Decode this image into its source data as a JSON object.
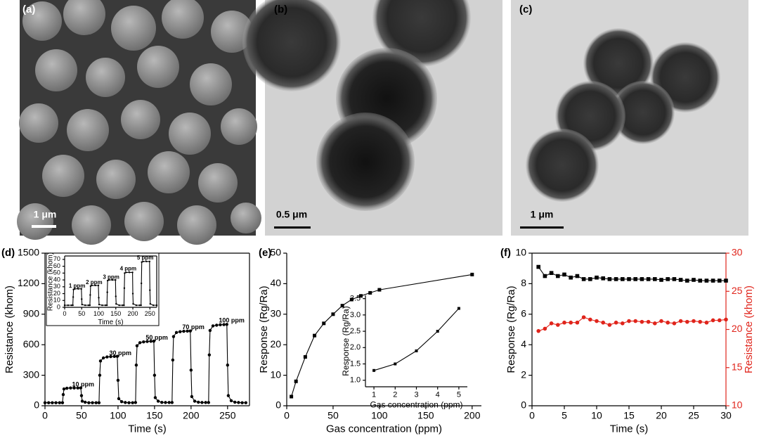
{
  "images": [
    {
      "label": "(a)",
      "scale_bar": "1 μm"
    },
    {
      "label": "(b)",
      "scale_bar": "0.5 μm"
    },
    {
      "label": "(c)",
      "scale_bar": "1 μm"
    }
  ],
  "chart_data": [
    {
      "type": "line",
      "panel_label": "(d)",
      "x_label": "Time (s)",
      "y_label": "Resistance (khom)",
      "x": [
        0,
        5,
        10,
        15,
        20,
        24,
        25,
        26,
        30,
        35,
        40,
        45,
        49,
        50,
        51,
        55,
        60,
        65,
        70,
        74,
        75,
        76,
        80,
        85,
        90,
        95,
        99,
        100,
        101,
        105,
        110,
        115,
        120,
        124,
        125,
        126,
        130,
        135,
        140,
        145,
        149,
        150,
        151,
        155,
        160,
        165,
        170,
        174,
        175,
        176,
        180,
        185,
        190,
        195,
        199,
        200,
        201,
        205,
        210,
        215,
        220,
        224,
        225,
        226,
        230,
        235,
        240,
        245,
        249,
        250,
        251,
        255,
        260,
        265,
        270,
        275
      ],
      "series": [
        {
          "color": "#000000",
          "marker": "circle",
          "values": [
            30,
            30,
            30,
            30,
            30,
            30,
            110,
            165,
            172,
            175,
            175,
            175,
            176,
            100,
            45,
            35,
            30,
            30,
            30,
            30,
            300,
            440,
            470,
            480,
            483,
            485,
            486,
            250,
            70,
            40,
            32,
            30,
            30,
            32,
            400,
            590,
            620,
            628,
            632,
            634,
            635,
            300,
            80,
            45,
            33,
            32,
            32,
            32,
            450,
            680,
            720,
            728,
            732,
            734,
            735,
            350,
            90,
            45,
            35,
            32,
            32,
            32,
            500,
            740,
            785,
            792,
            796,
            798,
            800,
            400,
            100,
            50,
            35,
            32,
            30,
            30
          ]
        }
      ],
      "annotations": [
        "10 ppm",
        "30 ppm",
        "50 ppm",
        "70 ppm",
        "100 ppm"
      ],
      "xlim": [
        0,
        280
      ],
      "xticks": [
        0,
        50,
        100,
        150,
        200,
        250
      ],
      "ylim": [
        0,
        1500
      ],
      "yticks": [
        0,
        300,
        600,
        900,
        1200,
        1500
      ]
    },
    {
      "type": "line",
      "x_label": "Time (s)",
      "y_label": "Resistance (khom)",
      "x": [
        0,
        10,
        20,
        24,
        25,
        26,
        30,
        40,
        49,
        50,
        51,
        60,
        70,
        74,
        75,
        76,
        80,
        90,
        99,
        100,
        101,
        110,
        120,
        124,
        125,
        126,
        130,
        140,
        149,
        150,
        151,
        160,
        170,
        174,
        175,
        176,
        180,
        190,
        199,
        200,
        201,
        210,
        220,
        224,
        225,
        226,
        230,
        240,
        249,
        250,
        251,
        260,
        270
      ],
      "series": [
        {
          "color": "#000000",
          "marker": "circle",
          "values": [
            3,
            3,
            3,
            3,
            15,
            26,
            27,
            27,
            27,
            12,
            4,
            3,
            3,
            3,
            18,
            31,
            32,
            32,
            32,
            14,
            4,
            3,
            3,
            3,
            22,
            39,
            40,
            40,
            40,
            16,
            5,
            3,
            3,
            3,
            28,
            50,
            51,
            51,
            51,
            20,
            5,
            3,
            3,
            3,
            35,
            66,
            67,
            67,
            67,
            25,
            5,
            3,
            3
          ]
        }
      ],
      "annotations": [
        "1 ppm",
        "2 ppm",
        "3 ppm",
        "4 ppm",
        "5 ppm"
      ],
      "xlim": [
        0,
        270
      ],
      "xticks": [
        0,
        50,
        100,
        150,
        200,
        250
      ],
      "ylim": [
        0,
        75
      ],
      "yticks": [
        0,
        10,
        20,
        30,
        40,
        50,
        60,
        70
      ]
    },
    {
      "type": "line",
      "panel_label": "(e)",
      "x_label": "Gas concentration (ppm)",
      "y_label": "Response (Rg/Ra)",
      "x": [
        5,
        10,
        20,
        30,
        40,
        50,
        60,
        70,
        80,
        90,
        100,
        200
      ],
      "series": [
        {
          "color": "#000000",
          "marker": "square",
          "values": [
            3,
            8,
            16,
            23,
            27,
            30,
            32.8,
            34.8,
            36,
            37,
            38,
            43
          ]
        }
      ],
      "xlim": [
        0,
        210
      ],
      "xticks": [
        0,
        50,
        100,
        150,
        200
      ],
      "ylim": [
        0,
        50
      ],
      "yticks": [
        0,
        10,
        20,
        30,
        40,
        50
      ]
    },
    {
      "type": "line",
      "x_label": "Gas concentration (ppm)",
      "y_label": "Response (Rg/Ra)",
      "x": [
        1,
        2,
        3,
        4,
        5
      ],
      "series": [
        {
          "color": "#000000",
          "marker": "square",
          "values": [
            1.3,
            1.5,
            1.9,
            2.5,
            3.2
          ]
        }
      ],
      "xlim": [
        0.6,
        5.4
      ],
      "xticks": [
        1,
        2,
        3,
        4,
        5
      ],
      "ylim": [
        0.8,
        3.6
      ],
      "yticks": [
        {
          "value": 1,
          "label": "1.0"
        },
        1.5,
        {
          "value": 2,
          "label": "2.0"
        },
        2.5,
        {
          "value": 3,
          "label": "3.0"
        },
        3.5
      ]
    },
    {
      "type": "line",
      "panel_label": "(f)",
      "x_label": "Time (s)",
      "y_label": "Response (Rg/Ra)",
      "y2_label": "Resistance (khom)",
      "y2_color": "#e0241b",
      "x": [
        1,
        2,
        3,
        4,
        5,
        6,
        7,
        8,
        9,
        10,
        11,
        12,
        13,
        14,
        15,
        16,
        17,
        18,
        19,
        20,
        21,
        22,
        23,
        24,
        25,
        26,
        27,
        28,
        29,
        30
      ],
      "series": [
        {
          "color": "#000000",
          "marker": "square",
          "values": [
            9.1,
            8.5,
            8.7,
            8.5,
            8.6,
            8.4,
            8.5,
            8.3,
            8.3,
            8.4,
            8.35,
            8.3,
            8.3,
            8.3,
            8.3,
            8.3,
            8.3,
            8.3,
            8.3,
            8.25,
            8.3,
            8.3,
            8.25,
            8.2,
            8.25,
            8.2,
            8.2,
            8.2,
            8.2,
            8.2
          ]
        },
        {
          "color": "#e0241b",
          "marker": "circle",
          "axis": "y2",
          "values": [
            19.8,
            20.1,
            20.8,
            20.6,
            20.9,
            20.9,
            20.9,
            21.6,
            21.3,
            21.1,
            20.9,
            20.6,
            20.9,
            20.8,
            21.1,
            21.1,
            21,
            21,
            20.8,
            21.1,
            20.9,
            20.8,
            21.1,
            21,
            21.1,
            21,
            20.9,
            21.2,
            21.2,
            21.3
          ]
        }
      ],
      "xlim": [
        0,
        30
      ],
      "xticks": [
        0,
        5,
        10,
        15,
        20,
        25,
        30
      ],
      "ylim": [
        0,
        10
      ],
      "yticks": [
        0,
        2,
        4,
        6,
        8,
        10
      ],
      "y2lim": [
        10,
        30
      ],
      "y2ticks": [
        10,
        15,
        20,
        25,
        30
      ]
    }
  ]
}
